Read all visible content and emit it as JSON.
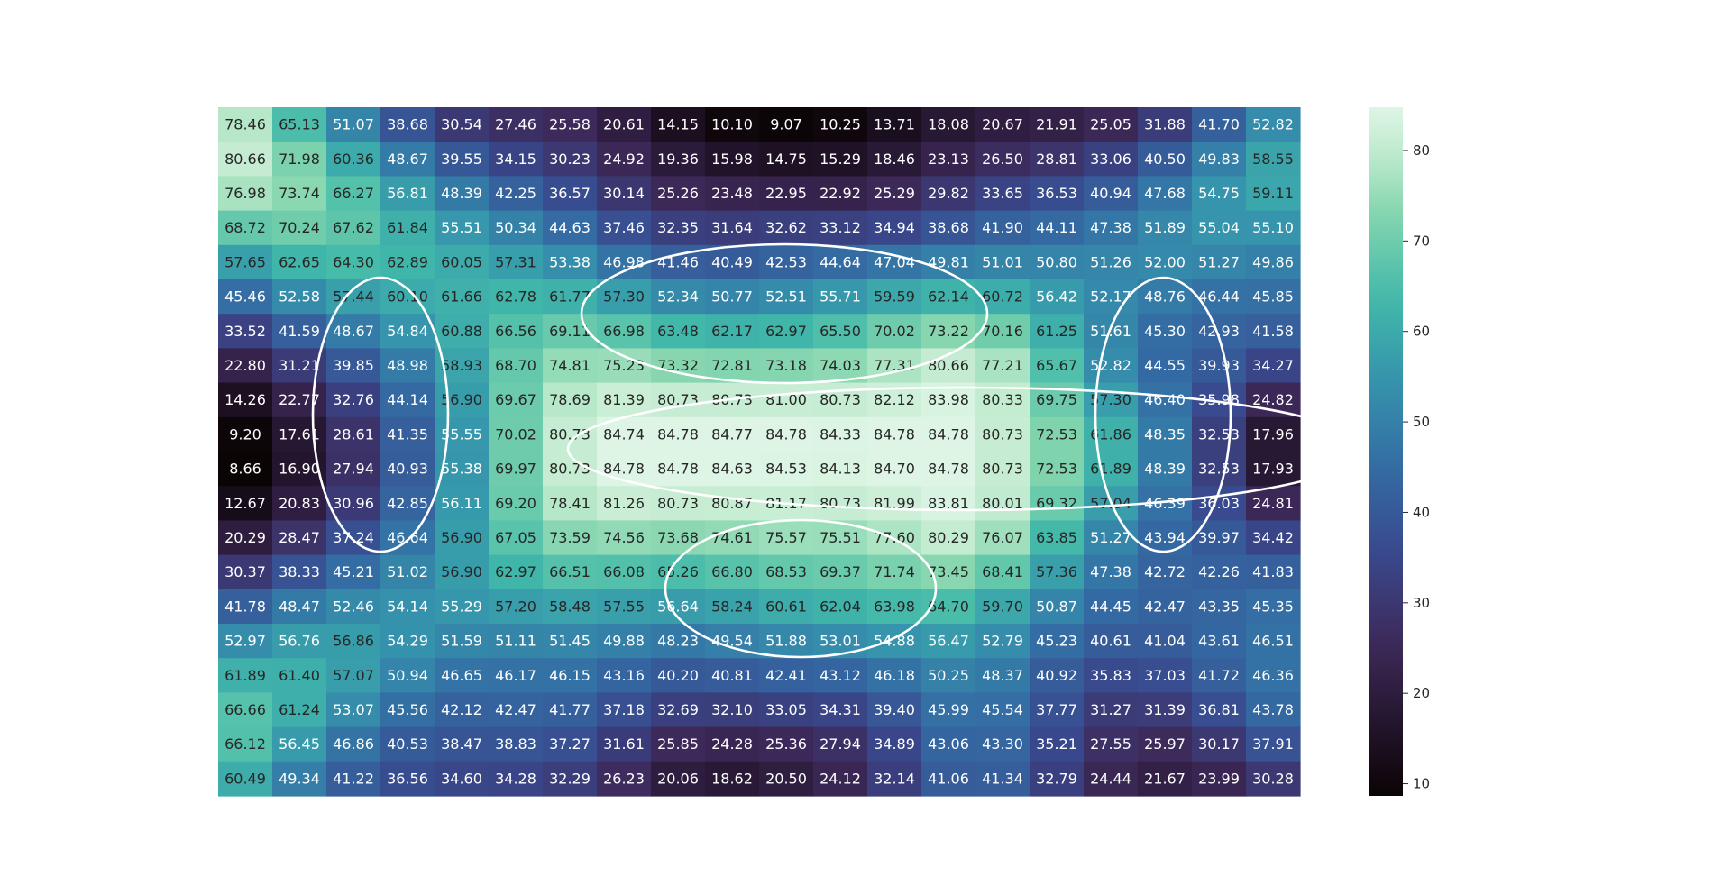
{
  "chart_data": {
    "type": "heatmap",
    "colormap": "mako",
    "value_range": [
      8.66,
      84.78
    ],
    "colorbar": {
      "ticks": [
        10,
        20,
        30,
        40,
        50,
        60,
        70,
        80
      ],
      "range": [
        8.66,
        84.78
      ]
    },
    "annotations_shown": true,
    "overlay_shapes": [
      "ellipse",
      "ellipse",
      "ellipse",
      "ellipse",
      "ellipse"
    ],
    "values": [
      [
        "78.46",
        "65.13",
        "51.07",
        "38.68",
        "30.54",
        "27.46",
        "25.58",
        "20.61",
        "14.15",
        "10.10",
        "9.07",
        "10.25",
        "13.71",
        "18.08",
        "20.67",
        "21.91",
        "25.05",
        "31.88",
        "41.70",
        "52.82"
      ],
      [
        "80.66",
        "71.98",
        "60.36",
        "48.67",
        "39.55",
        "34.15",
        "30.23",
        "24.92",
        "19.36",
        "15.98",
        "14.75",
        "15.29",
        "18.46",
        "23.13",
        "26.50",
        "28.81",
        "33.06",
        "40.50",
        "49.83",
        "58.55"
      ],
      [
        "76.98",
        "73.74",
        "66.27",
        "56.81",
        "48.39",
        "42.25",
        "36.57",
        "30.14",
        "25.26",
        "23.48",
        "22.95",
        "22.92",
        "25.29",
        "29.82",
        "33.65",
        "36.53",
        "40.94",
        "47.68",
        "54.75",
        "59.11"
      ],
      [
        "68.72",
        "70.24",
        "67.62",
        "61.84",
        "55.51",
        "50.34",
        "44.63",
        "37.46",
        "32.35",
        "31.64",
        "32.62",
        "33.12",
        "34.94",
        "38.68",
        "41.90",
        "44.11",
        "47.38",
        "51.89",
        "55.04",
        "55.10"
      ],
      [
        "57.65",
        "62.65",
        "64.30",
        "62.89",
        "60.05",
        "57.31",
        "53.38",
        "46.98",
        "41.46",
        "40.49",
        "42.53",
        "44.64",
        "47.04",
        "49.81",
        "51.01",
        "50.80",
        "51.26",
        "52.00",
        "51.27",
        "49.86"
      ],
      [
        "45.46",
        "52.58",
        "57.44",
        "60.10",
        "61.66",
        "62.78",
        "61.77",
        "57.30",
        "52.34",
        "50.77",
        "52.51",
        "55.71",
        "59.59",
        "62.14",
        "60.72",
        "56.42",
        "52.17",
        "48.76",
        "46.44",
        "45.85"
      ],
      [
        "33.52",
        "41.59",
        "48.67",
        "54.84",
        "60.88",
        "66.56",
        "69.11",
        "66.98",
        "63.48",
        "62.17",
        "62.97",
        "65.50",
        "70.02",
        "73.22",
        "70.16",
        "61.25",
        "51.61",
        "45.30",
        "42.93",
        "41.58"
      ],
      [
        "22.80",
        "31.21",
        "39.85",
        "48.98",
        "58.93",
        "68.70",
        "74.81",
        "75.23",
        "73.32",
        "72.81",
        "73.18",
        "74.03",
        "77.31",
        "80.66",
        "77.21",
        "65.67",
        "52.82",
        "44.55",
        "39.93",
        "34.27"
      ],
      [
        "14.26",
        "22.77",
        "32.76",
        "44.14",
        "56.90",
        "69.67",
        "78.69",
        "81.39",
        "80.73",
        "80.73",
        "81.00",
        "80.73",
        "82.12",
        "83.98",
        "80.33",
        "69.75",
        "57.30",
        "46.40",
        "35.98",
        "24.82"
      ],
      [
        "9.20",
        "17.61",
        "28.61",
        "41.35",
        "55.55",
        "70.02",
        "80.73",
        "84.74",
        "84.78",
        "84.77",
        "84.78",
        "84.33",
        "84.78",
        "84.78",
        "80.73",
        "72.53",
        "61.86",
        "48.35",
        "32.53",
        "17.96"
      ],
      [
        "8.66",
        "16.90",
        "27.94",
        "40.93",
        "55.38",
        "69.97",
        "80.73",
        "84.78",
        "84.78",
        "84.63",
        "84.53",
        "84.13",
        "84.70",
        "84.78",
        "80.73",
        "72.53",
        "61.89",
        "48.39",
        "32.53",
        "17.93"
      ],
      [
        "12.67",
        "20.83",
        "30.96",
        "42.85",
        "56.11",
        "69.20",
        "78.41",
        "81.26",
        "80.73",
        "80.87",
        "81.17",
        "80.73",
        "81.99",
        "83.81",
        "80.01",
        "69.32",
        "57.04",
        "46.39",
        "36.03",
        "24.81"
      ],
      [
        "20.29",
        "28.47",
        "37.24",
        "46.64",
        "56.90",
        "67.05",
        "73.59",
        "74.56",
        "73.68",
        "74.61",
        "75.57",
        "75.51",
        "77.60",
        "80.29",
        "76.07",
        "63.85",
        "51.27",
        "43.94",
        "39.97",
        "34.42"
      ],
      [
        "30.37",
        "38.33",
        "45.21",
        "51.02",
        "56.90",
        "62.97",
        "66.51",
        "66.08",
        "65.26",
        "66.80",
        "68.53",
        "69.37",
        "71.74",
        "73.45",
        "68.41",
        "57.36",
        "47.38",
        "42.72",
        "42.26",
        "41.83"
      ],
      [
        "41.78",
        "48.47",
        "52.46",
        "54.14",
        "55.29",
        "57.20",
        "58.48",
        "57.55",
        "56.64",
        "58.24",
        "60.61",
        "62.04",
        "63.98",
        "64.70",
        "59.70",
        "50.87",
        "44.45",
        "42.47",
        "43.35",
        "45.35"
      ],
      [
        "52.97",
        "56.76",
        "56.86",
        "54.29",
        "51.59",
        "51.11",
        "51.45",
        "49.88",
        "48.23",
        "49.54",
        "51.88",
        "53.01",
        "54.88",
        "56.47",
        "52.79",
        "45.23",
        "40.61",
        "41.04",
        "43.61",
        "46.51"
      ],
      [
        "61.89",
        "61.40",
        "57.07",
        "50.94",
        "46.65",
        "46.17",
        "46.15",
        "43.16",
        "40.20",
        "40.81",
        "42.41",
        "43.12",
        "46.18",
        "50.25",
        "48.37",
        "40.92",
        "35.83",
        "37.03",
        "41.72",
        "46.36"
      ],
      [
        "66.66",
        "61.24",
        "53.07",
        "45.56",
        "42.12",
        "42.47",
        "41.77",
        "37.18",
        "32.69",
        "32.10",
        "33.05",
        "34.31",
        "39.40",
        "45.99",
        "45.54",
        "37.77",
        "31.27",
        "31.39",
        "36.81",
        "43.78"
      ],
      [
        "66.12",
        "56.45",
        "46.86",
        "40.53",
        "38.47",
        "38.83",
        "37.27",
        "31.61",
        "25.85",
        "24.28",
        "25.36",
        "27.94",
        "34.89",
        "43.06",
        "43.30",
        "35.21",
        "27.55",
        "25.97",
        "30.17",
        "37.91"
      ],
      [
        "60.49",
        "49.34",
        "41.22",
        "36.56",
        "34.60",
        "34.28",
        "32.29",
        "26.23",
        "20.06",
        "18.62",
        "20.50",
        "24.12",
        "32.14",
        "41.06",
        "41.34",
        "32.79",
        "24.44",
        "21.67",
        "23.99",
        "30.28"
      ]
    ]
  }
}
